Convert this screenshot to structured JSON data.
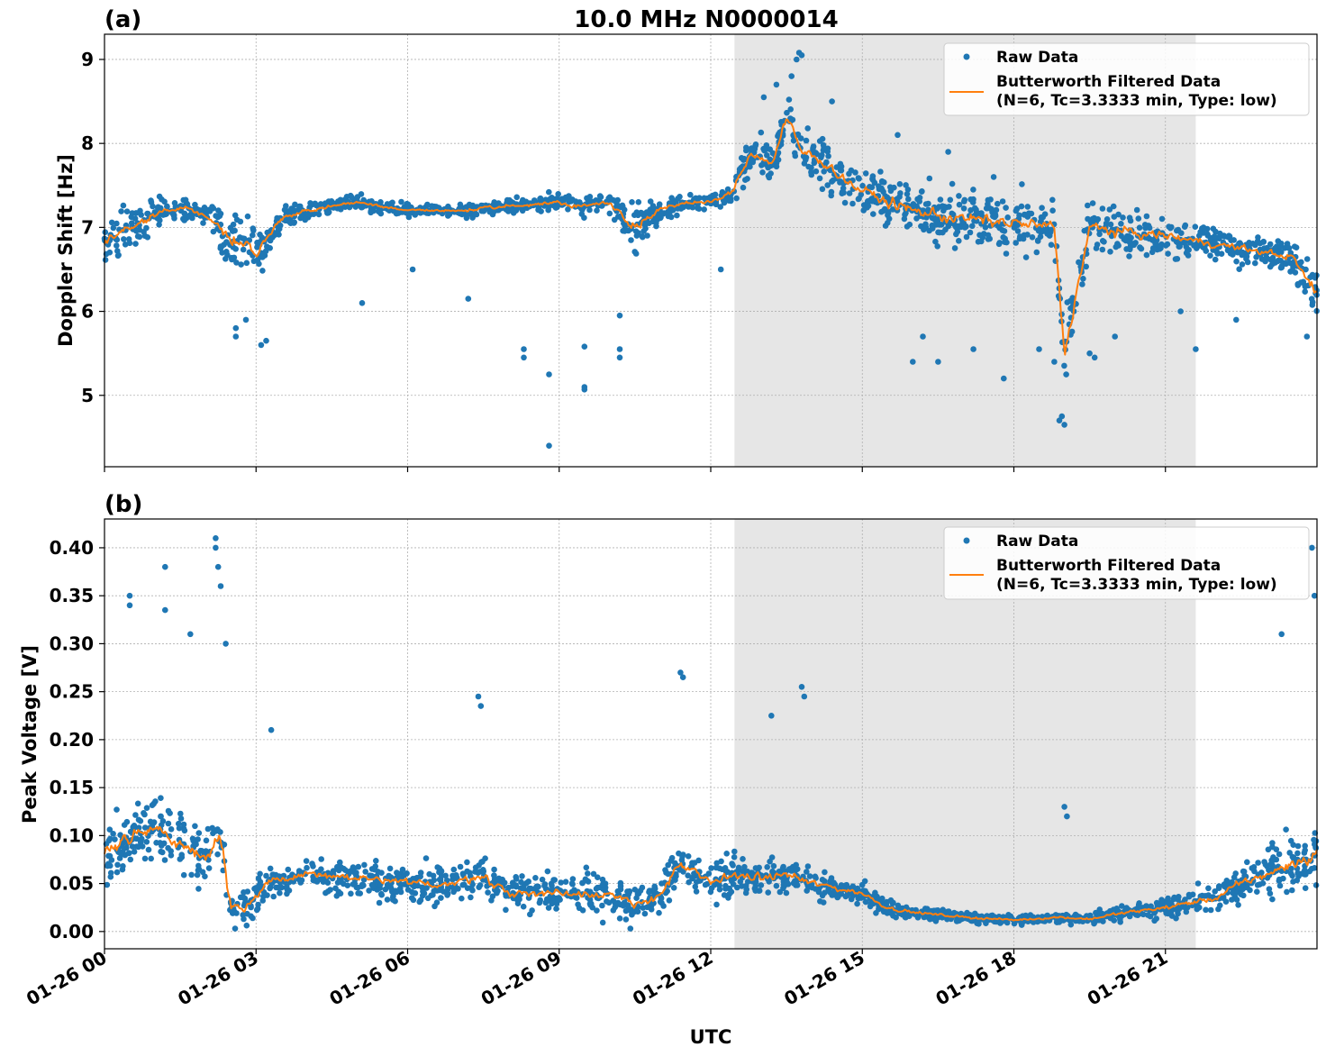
{
  "figure": {
    "title": "10.0 MHz N0000014",
    "xlabel": "UTC"
  },
  "chart_data": [
    {
      "type": "scatter",
      "panel_label": "(a)",
      "ylabel": "Doppler Shift [Hz]",
      "xlim_hours": [
        0,
        24
      ],
      "ylim": [
        4.15,
        9.3
      ],
      "yticks": [
        5,
        6,
        7,
        8,
        9
      ],
      "ytick_labels": [
        "5",
        "6",
        "7",
        "8",
        "9"
      ],
      "grid": true,
      "legend_position": "top-right",
      "shaded_interval_hours": [
        12.47,
        21.6
      ],
      "series": [
        {
          "name": "Raw Data",
          "color": "#1f77b4",
          "marker": "dot",
          "center_hours": [
            0,
            0.5,
            1,
            1.5,
            2,
            2.4,
            2.7,
            3,
            3.5,
            4,
            4.5,
            5,
            6,
            7,
            8,
            9,
            9.5,
            10,
            10.5,
            11,
            11.5,
            12,
            12.4,
            12.8,
            13.2,
            13.5,
            13.8,
            14.2,
            14.8,
            15.5,
            16,
            17,
            18,
            18.8,
            19,
            19.5,
            20,
            21,
            22,
            23,
            23.5,
            24
          ],
          "center_values": [
            6.85,
            7.0,
            7.15,
            7.25,
            7.15,
            6.9,
            6.8,
            6.7,
            7.1,
            7.2,
            7.25,
            7.3,
            7.2,
            7.2,
            7.25,
            7.3,
            7.25,
            7.3,
            7.0,
            7.2,
            7.3,
            7.3,
            7.4,
            7.9,
            7.75,
            8.3,
            7.9,
            7.8,
            7.5,
            7.3,
            7.2,
            7.1,
            7.05,
            7.0,
            5.5,
            7.0,
            6.95,
            6.9,
            6.8,
            6.7,
            6.65,
            6.2
          ],
          "spread_hours": [
            0,
            1,
            2,
            2.3,
            2.6,
            3.2,
            3.5,
            6,
            10,
            10.5,
            11,
            12,
            12.5,
            13.5,
            15,
            16,
            18,
            20,
            21,
            22,
            23,
            24
          ],
          "spread_values": [
            0.5,
            0.3,
            0.25,
            0.5,
            0.6,
            0.4,
            0.2,
            0.12,
            0.2,
            0.5,
            0.25,
            0.12,
            0.3,
            0.5,
            0.45,
            0.6,
            0.6,
            0.5,
            0.4,
            0.3,
            0.3,
            0.5
          ],
          "outlier_points": [
            [
              2.6,
              5.7
            ],
            [
              2.6,
              5.8
            ],
            [
              2.8,
              5.9
            ],
            [
              3.2,
              5.65
            ],
            [
              3.1,
              5.6
            ],
            [
              5.1,
              6.1
            ],
            [
              6.1,
              6.5
            ],
            [
              7.2,
              6.15
            ],
            [
              8.3,
              5.55
            ],
            [
              8.3,
              5.45
            ],
            [
              8.8,
              5.25
            ],
            [
              8.8,
              4.4
            ],
            [
              9.5,
              5.58
            ],
            [
              9.5,
              5.1
            ],
            [
              9.5,
              5.07
            ],
            [
              10.2,
              5.95
            ],
            [
              10.2,
              5.55
            ],
            [
              10.2,
              5.45
            ],
            [
              12.2,
              6.5
            ],
            [
              16.0,
              5.4
            ],
            [
              16.2,
              5.7
            ],
            [
              16.5,
              5.4
            ],
            [
              17.2,
              5.55
            ],
            [
              17.8,
              5.2
            ],
            [
              18.5,
              5.55
            ],
            [
              18.8,
              5.4
            ],
            [
              18.9,
              4.7
            ],
            [
              18.95,
              4.75
            ],
            [
              19.0,
              4.65
            ],
            [
              19.5,
              5.5
            ],
            [
              19.6,
              5.45
            ],
            [
              20.0,
              5.7
            ],
            [
              21.3,
              6.0
            ],
            [
              21.6,
              5.55
            ],
            [
              22.4,
              5.9
            ],
            [
              23.8,
              5.7
            ]
          ],
          "upper_spike_points": [
            [
              13.05,
              8.55
            ],
            [
              13.3,
              8.7
            ],
            [
              13.6,
              8.8
            ],
            [
              13.7,
              9.0
            ],
            [
              13.75,
              9.08
            ],
            [
              13.8,
              9.05
            ],
            [
              14.4,
              8.5
            ],
            [
              15.7,
              8.1
            ],
            [
              16.7,
              7.9
            ],
            [
              17.6,
              7.6
            ]
          ]
        },
        {
          "name": "Butterworth Filtered Data",
          "name_detail": "(N=6, Tc=3.3333 min, Type: low)",
          "color": "#ff7f0e",
          "line": true
        }
      ]
    },
    {
      "type": "scatter",
      "panel_label": "(b)",
      "ylabel": "Peak Voltage [V]",
      "xlim_hours": [
        0,
        24
      ],
      "ylim": [
        -0.018,
        0.43
      ],
      "yticks": [
        0.0,
        0.05,
        0.1,
        0.15,
        0.2,
        0.25,
        0.3,
        0.35,
        0.4
      ],
      "ytick_labels": [
        "0.00",
        "0.05",
        "0.10",
        "0.15",
        "0.20",
        "0.25",
        "0.30",
        "0.35",
        "0.40"
      ],
      "grid": true,
      "legend_position": "top-right",
      "shaded_interval_hours": [
        12.47,
        21.6
      ],
      "series": [
        {
          "name": "Raw Data",
          "color": "#1f77b4",
          "marker": "dot",
          "center_hours": [
            0,
            0.3,
            0.6,
            1,
            1.5,
            2,
            2.3,
            2.5,
            2.8,
            3.2,
            4,
            5,
            6,
            7,
            7.4,
            8,
            9,
            10,
            10.5,
            11,
            11.4,
            12,
            12.5,
            13,
            13.5,
            14,
            14.5,
            15,
            15.5,
            16,
            17,
            18,
            18.9,
            19.5,
            20,
            21,
            22,
            22.5,
            23,
            23.5,
            24
          ],
          "center_values": [
            0.08,
            0.09,
            0.1,
            0.11,
            0.09,
            0.08,
            0.1,
            0.025,
            0.025,
            0.05,
            0.06,
            0.055,
            0.05,
            0.05,
            0.06,
            0.04,
            0.04,
            0.04,
            0.025,
            0.04,
            0.07,
            0.05,
            0.06,
            0.055,
            0.06,
            0.05,
            0.045,
            0.04,
            0.025,
            0.02,
            0.015,
            0.012,
            0.015,
            0.013,
            0.018,
            0.025,
            0.035,
            0.05,
            0.06,
            0.07,
            0.08
          ],
          "spread_hours": [
            0,
            2,
            2.4,
            3,
            8,
            12,
            14,
            15,
            16,
            18,
            20,
            21,
            22,
            23,
            24
          ],
          "spread_values": [
            0.06,
            0.06,
            0.05,
            0.03,
            0.035,
            0.035,
            0.03,
            0.02,
            0.012,
            0.008,
            0.012,
            0.018,
            0.025,
            0.04,
            0.06
          ],
          "outlier_points": [
            [
              0.5,
              0.35
            ],
            [
              0.5,
              0.34
            ],
            [
              1.2,
              0.38
            ],
            [
              1.2,
              0.335
            ],
            [
              1.7,
              0.31
            ],
            [
              2.2,
              0.41
            ],
            [
              2.2,
              0.4
            ],
            [
              2.25,
              0.38
            ],
            [
              2.3,
              0.36
            ],
            [
              2.4,
              0.3
            ],
            [
              3.3,
              0.21
            ],
            [
              7.4,
              0.245
            ],
            [
              7.45,
              0.235
            ],
            [
              11.4,
              0.27
            ],
            [
              11.45,
              0.265
            ],
            [
              13.2,
              0.225
            ],
            [
              13.8,
              0.255
            ],
            [
              13.85,
              0.245
            ],
            [
              19.0,
              0.13
            ],
            [
              19.05,
              0.12
            ],
            [
              23.3,
              0.31
            ],
            [
              23.9,
              0.4
            ],
            [
              23.95,
              0.35
            ]
          ]
        },
        {
          "name": "Butterworth Filtered Data",
          "name_detail": "(N=6, Tc=3.3333 min, Type: low)",
          "color": "#ff7f0e",
          "line": true
        }
      ]
    }
  ],
  "xticks_hours": [
    0,
    3,
    6,
    9,
    12,
    15,
    18,
    21
  ],
  "xtick_labels": [
    "01-26 00",
    "01-26 03",
    "01-26 06",
    "01-26 09",
    "01-26 12",
    "01-26 15",
    "01-26 18",
    "01-26 21"
  ],
  "colors": {
    "raw": "#1f77b4",
    "filtered": "#ff7f0e",
    "shade": "#e6e6e6",
    "grid": "#b0b0b0"
  }
}
